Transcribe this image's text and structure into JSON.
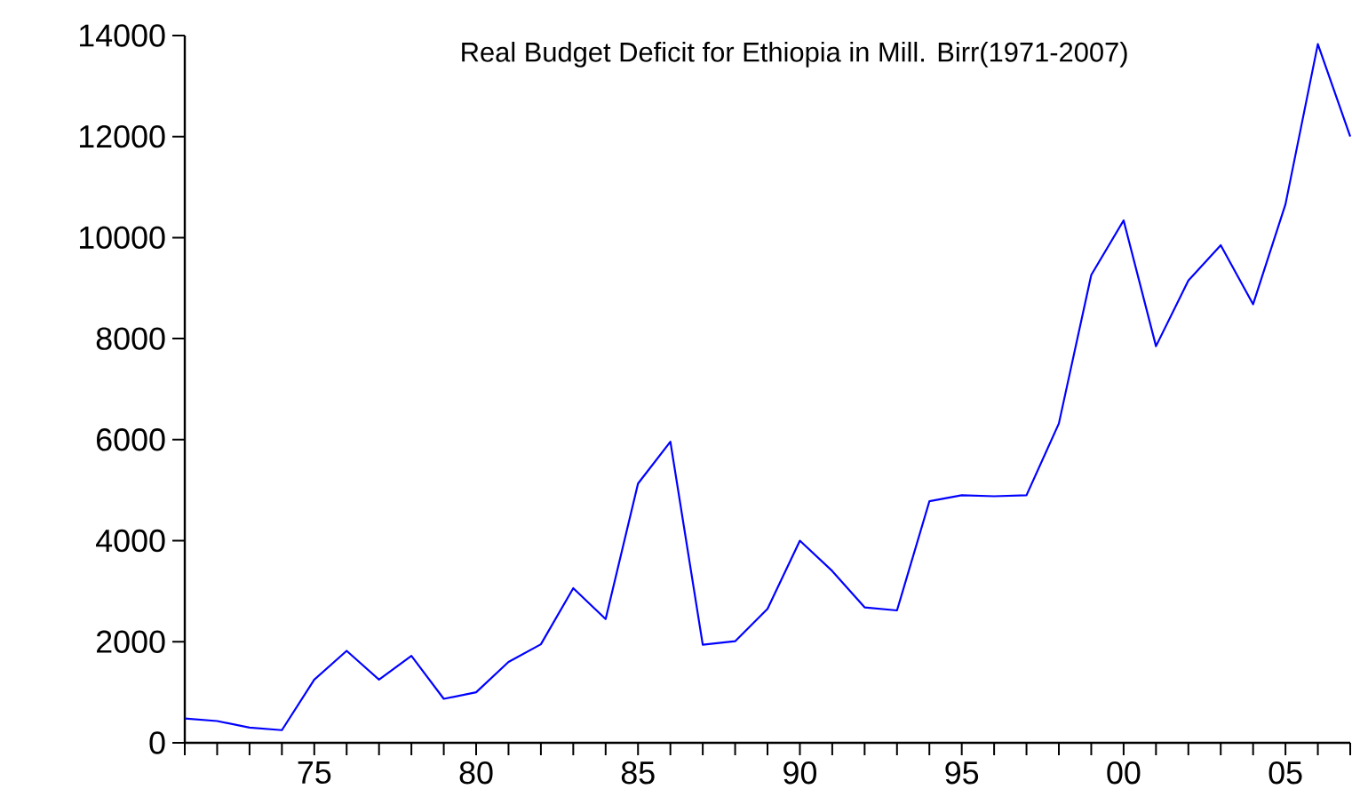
{
  "chart_data": {
    "type": "line",
    "title": "Real Budget Deficit for Ethiopia in Mill. Birr(1971-2007)",
    "x": [
      1971,
      1972,
      1973,
      1974,
      1975,
      1976,
      1977,
      1978,
      1979,
      1980,
      1981,
      1982,
      1983,
      1984,
      1985,
      1986,
      1987,
      1988,
      1989,
      1990,
      1991,
      1992,
      1993,
      1994,
      1995,
      1996,
      1997,
      1998,
      1999,
      2000,
      2001,
      2002,
      2003,
      2004,
      2005,
      2006,
      2007
    ],
    "series": [
      {
        "color": "#0000ff",
        "values": [
          480,
          430,
          300,
          250,
          1250,
          1820,
          1250,
          1720,
          870,
          1000,
          1600,
          1950,
          3060,
          2450,
          5130,
          5960,
          1940,
          2010,
          2650,
          4000,
          3400,
          2680,
          2620,
          4780,
          4900,
          4880,
          4900,
          6320,
          9260,
          10340,
          7850,
          9150,
          9850,
          8680,
          10660,
          13830,
          12000
        ]
      }
    ],
    "xlim": [
      1971,
      2007
    ],
    "xticks": [
      {
        "value": 1971,
        "label": null
      },
      {
        "value": 1972,
        "label": null
      },
      {
        "value": 1973,
        "label": null
      },
      {
        "value": 1974,
        "label": null
      },
      {
        "value": 1975,
        "label": "75"
      },
      {
        "value": 1976,
        "label": null
      },
      {
        "value": 1977,
        "label": null
      },
      {
        "value": 1978,
        "label": null
      },
      {
        "value": 1979,
        "label": null
      },
      {
        "value": 1980,
        "label": "80"
      },
      {
        "value": 1981,
        "label": null
      },
      {
        "value": 1982,
        "label": null
      },
      {
        "value": 1983,
        "label": null
      },
      {
        "value": 1984,
        "label": null
      },
      {
        "value": 1985,
        "label": "85"
      },
      {
        "value": 1986,
        "label": null
      },
      {
        "value": 1987,
        "label": null
      },
      {
        "value": 1988,
        "label": null
      },
      {
        "value": 1989,
        "label": null
      },
      {
        "value": 1990,
        "label": "90"
      },
      {
        "value": 1991,
        "label": null
      },
      {
        "value": 1992,
        "label": null
      },
      {
        "value": 1993,
        "label": null
      },
      {
        "value": 1994,
        "label": null
      },
      {
        "value": 1995,
        "label": "95"
      },
      {
        "value": 1996,
        "label": null
      },
      {
        "value": 1997,
        "label": null
      },
      {
        "value": 1998,
        "label": null
      },
      {
        "value": 1999,
        "label": null
      },
      {
        "value": 2000,
        "label": "00"
      },
      {
        "value": 2001,
        "label": null
      },
      {
        "value": 2002,
        "label": null
      },
      {
        "value": 2003,
        "label": null
      },
      {
        "value": 2004,
        "label": null
      },
      {
        "value": 2005,
        "label": "05"
      },
      {
        "value": 2006,
        "label": null
      },
      {
        "value": 2007,
        "label": null
      }
    ],
    "ylim": [
      0,
      14000
    ],
    "yticks": [
      0,
      2000,
      4000,
      6000,
      8000,
      10000,
      12000,
      14000
    ]
  }
}
